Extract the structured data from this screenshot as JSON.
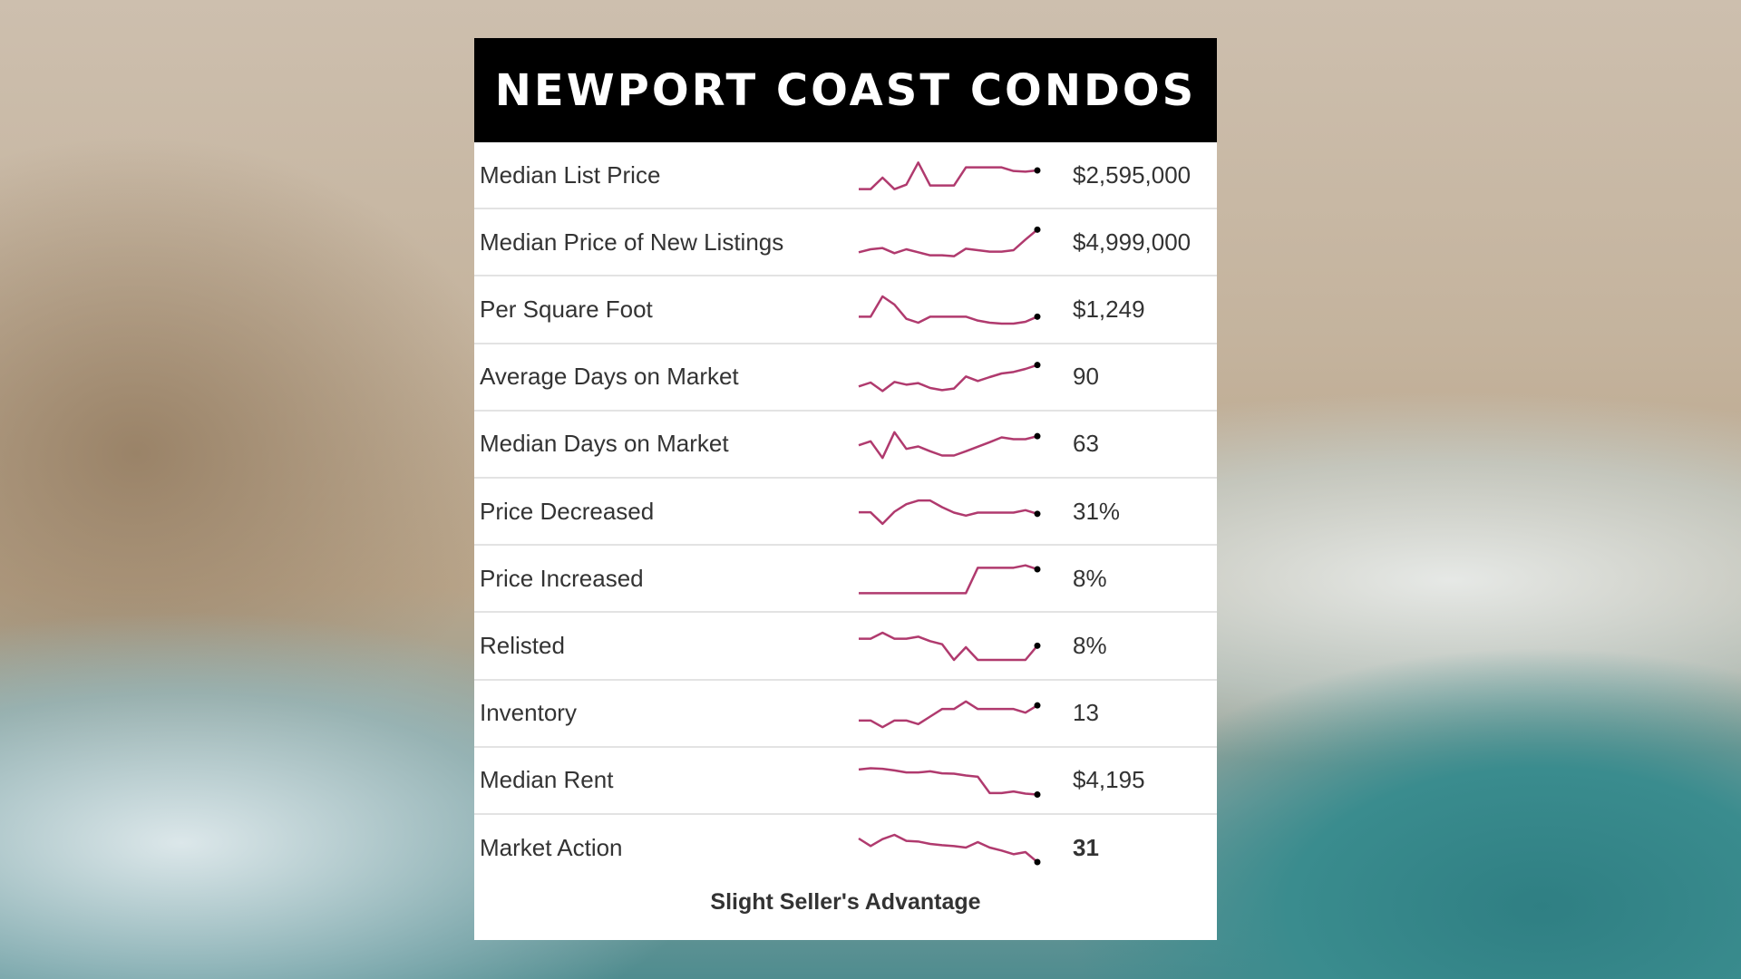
{
  "header": {
    "title": "NEWPORT COAST CONDOS"
  },
  "colors": {
    "sparkline": "#b03a6e",
    "endpoint": "#000000",
    "header_bg": "#000000"
  },
  "rows": [
    {
      "label": "Median List Price",
      "value": "$2,595,000",
      "trend": [
        0,
        0,
        38,
        0,
        15,
        88,
        12,
        12,
        12,
        72,
        72,
        72,
        72,
        60,
        58,
        62
      ]
    },
    {
      "label": "Median Price of New Listings",
      "value": "$4,999,000",
      "trend": [
        13,
        23,
        27,
        10,
        23,
        13,
        3,
        3,
        0,
        25,
        20,
        15,
        15,
        20,
        55,
        88
      ]
    },
    {
      "label": "Per Square Foot",
      "value": "$1,249",
      "trend": [
        23,
        23,
        90,
        63,
        16,
        3,
        23,
        23,
        23,
        23,
        10,
        3,
        0,
        0,
        6,
        23
      ]
    },
    {
      "label": "Average Days on Market",
      "value": "90",
      "trend": [
        15,
        28,
        0,
        30,
        21,
        26,
        10,
        3,
        8,
        48,
        33,
        46,
        58,
        63,
        73,
        86
      ]
    },
    {
      "label": "Median Days on Market",
      "value": "63",
      "trend": [
        42,
        55,
        0,
        85,
        30,
        38,
        22,
        8,
        8,
        22,
        37,
        52,
        68,
        62,
        62,
        72
      ]
    },
    {
      "label": "Price Decreased",
      "value": "31%",
      "trend": [
        38,
        38,
        0,
        40,
        65,
        77,
        77,
        55,
        37,
        27,
        37,
        37,
        37,
        37,
        45,
        33
      ]
    },
    {
      "label": "Price Increased",
      "value": "8%",
      "trend": [
        0,
        0,
        0,
        0,
        0,
        0,
        0,
        0,
        0,
        0,
        84,
        84,
        84,
        84,
        92,
        79
      ]
    },
    {
      "label": "Relisted",
      "value": "8%",
      "trend": [
        70,
        70,
        90,
        70,
        70,
        77,
        62,
        52,
        0,
        42,
        0,
        0,
        0,
        0,
        0,
        47
      ]
    },
    {
      "label": "Inventory",
      "value": "13",
      "trend": [
        22,
        22,
        0,
        22,
        22,
        10,
        35,
        60,
        60,
        85,
        60,
        60,
        60,
        60,
        48,
        72
      ]
    },
    {
      "label": "Median Rent",
      "value": "$4,195",
      "trend": [
        83,
        87,
        85,
        80,
        73,
        73,
        77,
        70,
        69,
        63,
        59,
        5,
        5,
        10,
        3,
        0
      ]
    },
    {
      "label": "Market Action",
      "value": "31",
      "trend": [
        78,
        53,
        76,
        90,
        70,
        68,
        60,
        56,
        53,
        48,
        66,
        48,
        38,
        26,
        33,
        0
      ]
    }
  ],
  "footer": {
    "text": "Slight Seller's Advantage"
  }
}
